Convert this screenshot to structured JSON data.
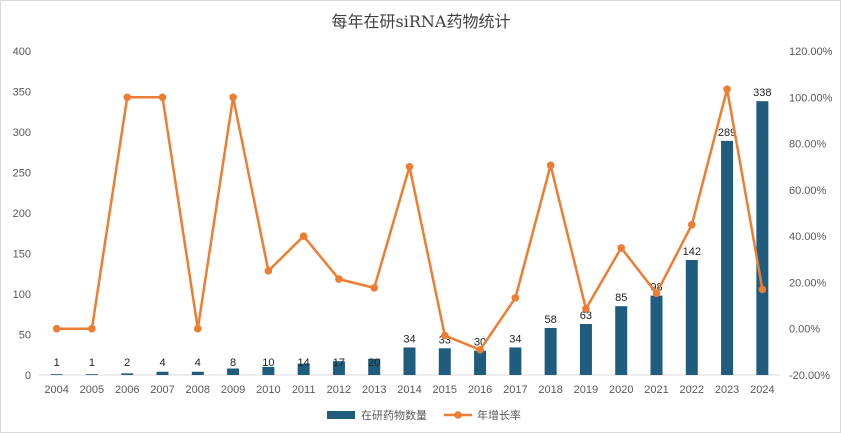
{
  "chart_data": {
    "type": "bar+line",
    "title": "每年在研siRNA药物统计",
    "categories": [
      "2004",
      "2005",
      "2006",
      "2007",
      "2008",
      "2009",
      "2010",
      "2011",
      "2012",
      "2013",
      "2014",
      "2015",
      "2016",
      "2017",
      "2018",
      "2019",
      "2020",
      "2021",
      "2022",
      "2023",
      "2024"
    ],
    "series": [
      {
        "name": "在研药物数量",
        "type": "bar",
        "axis": "left",
        "color": "#1f5c7d",
        "values": [
          1,
          1,
          2,
          4,
          4,
          8,
          10,
          14,
          17,
          20,
          34,
          33,
          30,
          34,
          58,
          63,
          85,
          98,
          142,
          289,
          338
        ]
      },
      {
        "name": "年增长率",
        "type": "line",
        "axis": "right",
        "color": "#ed7d31",
        "values": [
          0.0,
          0.0,
          100.0,
          100.0,
          0.0,
          100.0,
          25.0,
          40.0,
          21.43,
          17.65,
          70.0,
          -2.94,
          -9.09,
          13.33,
          70.59,
          8.62,
          34.92,
          15.29,
          44.9,
          103.52,
          16.96
        ]
      }
    ],
    "y_left": {
      "min": 0,
      "max": 400,
      "step": 50,
      "ticks": [
        "0",
        "50",
        "100",
        "150",
        "200",
        "250",
        "300",
        "350",
        "400"
      ]
    },
    "y_right": {
      "min": -20,
      "max": 120,
      "step": 20,
      "ticks": [
        "-20.00%",
        "0.00%",
        "20.00%",
        "40.00%",
        "60.00%",
        "80.00%",
        "100.00%",
        "120.00%"
      ]
    },
    "grid": false,
    "legend": "bottom-center",
    "data_labels": "bar values"
  }
}
